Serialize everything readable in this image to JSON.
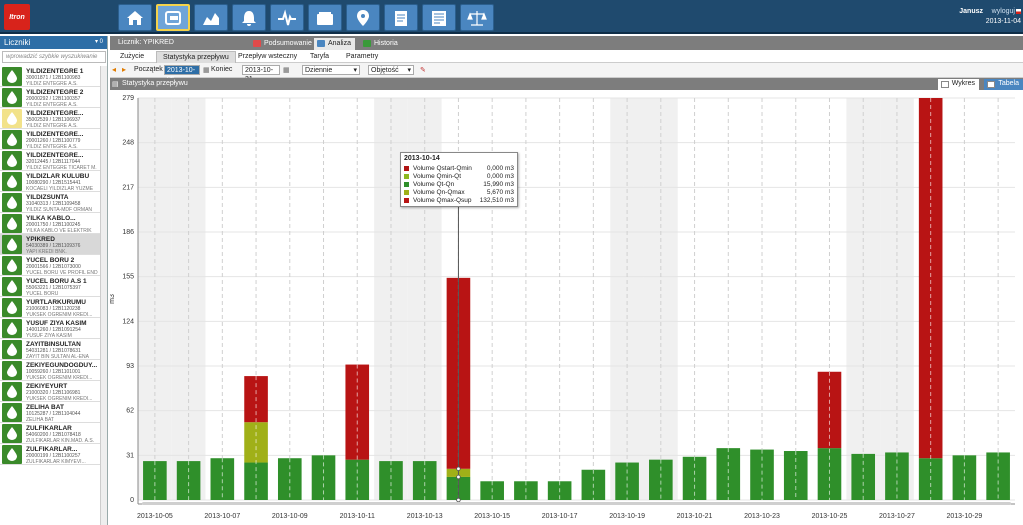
{
  "header": {
    "logo": "Itron",
    "user": "Janusz",
    "logout": "wyloguj",
    "date": "2013-11-04",
    "nav": [
      {
        "icon": "home-icon"
      },
      {
        "icon": "meter-icon"
      },
      {
        "icon": "area-chart-icon"
      },
      {
        "icon": "bell-icon"
      },
      {
        "icon": "pulse-icon"
      },
      {
        "icon": "wallet-icon"
      },
      {
        "icon": "map-pin-icon"
      },
      {
        "icon": "report-icon"
      },
      {
        "icon": "document-icon"
      },
      {
        "icon": "scales-icon"
      }
    ],
    "active_nav": 1
  },
  "sidebar": {
    "title": "Liczniki",
    "count": "0",
    "search_placeholder": "wprowadzić szybkie wyszukiwanie",
    "items": [
      {
        "name": "YILDIZENTEGRE 1",
        "id": "30001871 / 12B1100983",
        "company": "YILDIZ ENTEGRE A.S.",
        "color": "green"
      },
      {
        "name": "YILDIZENTEGRE 2",
        "id": "20000292 / 12B1100357",
        "company": "YILDIZ ENTEGRE A.S.",
        "color": "green"
      },
      {
        "name": "YILDIZENTEGRE...",
        "id": "35002539 / 12B1106937",
        "company": "YILDIZ ENTEGRE A.S.",
        "color": "yellow"
      },
      {
        "name": "YILDIZENTEGRE...",
        "id": "20001260 / 12B1100779",
        "company": "YILDIZ ENTEGRE A.S.",
        "color": "green"
      },
      {
        "name": "YILDIZENTEGRE...",
        "id": "32012445 / 12B1117044",
        "company": "YILDIZ ENTEGRE TICARET M.",
        "color": "green"
      },
      {
        "name": "YILDIZLAR KULUBU",
        "id": "10080290 / 12B1515441",
        "company": "KOCAELI YILDIZLAR YUZME",
        "color": "green"
      },
      {
        "name": "YILDIZSUNTA",
        "id": "31040313 / 12B1109458",
        "company": "YILDIZ SUNTA-MDF ORMAN",
        "color": "green"
      },
      {
        "name": "YILKA KABLO...",
        "id": "20001750 / 12B1100245",
        "company": "YILKA KABLO VE ELEKTRIK",
        "color": "green"
      },
      {
        "name": "YPIKRED",
        "id": "54030389 / 12B1109376",
        "company": "YAPI KREDI BNK.",
        "color": "green",
        "selected": true
      },
      {
        "name": "YUCEL BORU 2",
        "id": "20001566 / 12B1073000",
        "company": "YUCEL BORU VE PROFIL END",
        "color": "green"
      },
      {
        "name": "YUCEL BORU A.S 1",
        "id": "55063221 / 12B1075397",
        "company": "YUCEL BORU",
        "color": "green"
      },
      {
        "name": "YURTLARKURUMU",
        "id": "21006083 / 12B1120238",
        "company": "YUKSEK OGRENIM KREDI...",
        "color": "green"
      },
      {
        "name": "YUSUF ZIYA KASIM",
        "id": "14001260 / 12B1091254",
        "company": "YUSUF ZIYA KASIM",
        "color": "green"
      },
      {
        "name": "ZAYITBINSULTAN",
        "id": "54031281 / 12B1078631",
        "company": "ZAYIT BIN SULTAN AL-ENA",
        "color": "green"
      },
      {
        "name": "ZEKIYEGUNDOGDUY...",
        "id": "10059260 / 12B1101001",
        "company": "YUKSEK OGRENIM KREDI...",
        "color": "green"
      },
      {
        "name": "ZEKIYEYURT",
        "id": "21000320 / 12B1106981",
        "company": "YUKSEK OGRENIM KREDI...",
        "color": "green"
      },
      {
        "name": "ZELIHA BAT",
        "id": "10125287 / 12B1104044",
        "company": "ZELIHA BAT",
        "color": "green"
      },
      {
        "name": "ZULFIKARLAR",
        "id": "54060200 / 12B1078418",
        "company": "ZULFIKARLAR KIN.MAD. A.S.",
        "color": "green"
      },
      {
        "name": "ZULFIKARLAR...",
        "id": "20000199 / 12B1100257",
        "company": "ZULFIKARLAR KIMYEVI...",
        "color": "green"
      }
    ]
  },
  "main": {
    "meter_title": "Licznik: YPIKRED",
    "view_tabs": [
      {
        "label": "Podsumowanie",
        "color": "#e04a4a"
      },
      {
        "label": "Analiza",
        "color": "#4a86c0",
        "active": true
      },
      {
        "label": "Historia",
        "color": "#3a9a3a"
      }
    ],
    "subtabs": [
      "Zużycie",
      "Statystyka przepływu",
      "Przepływ wsteczny",
      "Taryfa",
      "Parametry"
    ],
    "active_subtab": 1,
    "toolbar": {
      "start_label": "Początek",
      "start_value": "2013-10-05",
      "end_label": "Koniec",
      "end_value": "2013-10-31",
      "interval": "Dziennie",
      "measure": "Objętość"
    },
    "chart_header": "Statystyka przepływu",
    "chart_tabs": {
      "chart": "Wykres",
      "table": "Tabela"
    }
  },
  "chart_data": {
    "type": "bar",
    "stacked": true,
    "ylabel": "m3",
    "ylim": [
      0,
      279
    ],
    "yticks": [
      0,
      31,
      62,
      93,
      124,
      155,
      186,
      217,
      248,
      279
    ],
    "x_tick_labels": [
      "2013-10-05",
      "2013-10-07",
      "2013-10-09",
      "2013-10-11",
      "2013-10-13",
      "2013-10-15",
      "2013-10-17",
      "2013-10-19",
      "2013-10-21",
      "2013-10-23",
      "2013-10-25",
      "2013-10-27",
      "2013-10-29"
    ],
    "categories": [
      "2013-10-05",
      "2013-10-06",
      "2013-10-07",
      "2013-10-08",
      "2013-10-09",
      "2013-10-10",
      "2013-10-11",
      "2013-10-12",
      "2013-10-13",
      "2013-10-14",
      "2013-10-15",
      "2013-10-16",
      "2013-10-17",
      "2013-10-18",
      "2013-10-19",
      "2013-10-20",
      "2013-10-21",
      "2013-10-22",
      "2013-10-23",
      "2013-10-24",
      "2013-10-25",
      "2013-10-26",
      "2013-10-27",
      "2013-10-28",
      "2013-10-29",
      "2013-10-30"
    ],
    "series": [
      {
        "name": "Volume Qstart-Qmin",
        "color": "#b01414",
        "values": [
          0,
          0,
          0,
          0,
          0,
          0,
          0,
          0,
          0,
          0,
          0,
          0,
          0,
          0,
          0,
          0,
          0,
          0,
          0,
          0,
          0,
          0,
          0,
          0,
          0,
          0
        ]
      },
      {
        "name": "Volume Qmin-Qt",
        "color": "#8cb820",
        "values": [
          0,
          0,
          0,
          0,
          0,
          0,
          0,
          0,
          0,
          0,
          0,
          0,
          0,
          0,
          0,
          0,
          0,
          0,
          0,
          0,
          0,
          0,
          0,
          0,
          0,
          0
        ]
      },
      {
        "name": "Volume Qt-Qn",
        "color": "#2f8f2a",
        "values": [
          27,
          27,
          29,
          26,
          29,
          31,
          28,
          27,
          27,
          16,
          13,
          13,
          13,
          21,
          26,
          28,
          30,
          36,
          35,
          34,
          36,
          32,
          33,
          29,
          31,
          33
        ]
      },
      {
        "name": "Volume Qn-Qmax",
        "color": "#a0b018",
        "values": [
          0,
          0,
          0,
          28,
          0,
          0,
          0,
          0,
          0,
          5.67,
          0,
          0,
          0,
          0,
          0,
          0,
          0,
          0,
          0,
          0,
          0,
          0,
          0,
          0,
          0,
          0
        ]
      },
      {
        "name": "Volume Qmax-Qsup",
        "color": "#b81414",
        "values": [
          0,
          0,
          0,
          32,
          0,
          0,
          66,
          0,
          0,
          132.51,
          0,
          0,
          0,
          0,
          0,
          0,
          0,
          0,
          0,
          0,
          53,
          0,
          0,
          250,
          0,
          0
        ]
      }
    ],
    "tooltip": {
      "date": "2013-10-14",
      "rows": [
        {
          "label": "Volume Qstart-Qmin",
          "value": "0,000 m3",
          "color": "#b01414"
        },
        {
          "label": "Volume Qmin-Qt",
          "value": "0,000 m3",
          "color": "#8cb820"
        },
        {
          "label": "Volume Qt-Qn",
          "value": "15,990 m3",
          "color": "#2f8f2a"
        },
        {
          "label": "Volume Qn-Qmax",
          "value": "5,670 m3",
          "color": "#a0b018"
        },
        {
          "label": "Volume Qmax-Qsup",
          "value": "132,510 m3",
          "color": "#b81414"
        }
      ]
    },
    "grid": true,
    "legend": "none"
  }
}
